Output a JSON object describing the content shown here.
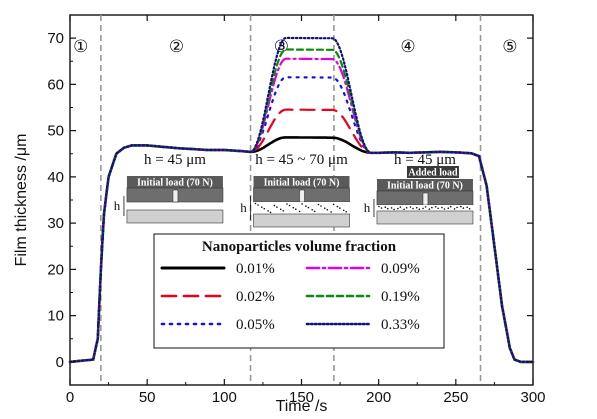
{
  "chart_data": {
    "type": "line",
    "xlabel": "Time /s",
    "ylabel": "Film thickness /μm",
    "xlim": [
      0,
      300
    ],
    "ylim": [
      -5,
      75
    ],
    "x_ticks": [
      0,
      50,
      100,
      150,
      200,
      250,
      300
    ],
    "x_tick_labels": [
      "0",
      "50",
      "100",
      "150",
      "200",
      "250",
      "300"
    ],
    "y_ticks": [
      0,
      10,
      20,
      30,
      40,
      50,
      60,
      70
    ],
    "y_tick_labels": [
      "0",
      "10",
      "20",
      "30",
      "40",
      "50",
      "60",
      "70"
    ],
    "grid": false,
    "stage_boundaries": [
      20,
      117,
      171,
      266
    ],
    "stages": [
      {
        "label": "①",
        "x": 7
      },
      {
        "label": "②",
        "x": 69
      },
      {
        "label": "③",
        "x": 137
      },
      {
        "label": "④",
        "x": 219
      },
      {
        "label": "⑤",
        "x": 285
      }
    ],
    "annotations": [
      {
        "text": "h = 45 μm",
        "x": 68,
        "y": 44
      },
      {
        "text": "h = 45 ~ 70 μm",
        "x": 150,
        "y": 44
      },
      {
        "text": "h = 45 μm",
        "x": 230,
        "y": 44
      }
    ],
    "inset_labels": {
      "initial_load": "Initial load (70 N)",
      "added_load": "Added load",
      "h": "h"
    },
    "legend": {
      "title": "Nanoparticles volume fraction",
      "placement": "center-bottom"
    },
    "base_profile": {
      "x": [
        0,
        15,
        18,
        20,
        22,
        25,
        30,
        35,
        40,
        50,
        60,
        70,
        80,
        90,
        100,
        110,
        117,
        200,
        210,
        220,
        230,
        240,
        250,
        260,
        265,
        270,
        275,
        280,
        285,
        288,
        292,
        296,
        300
      ],
      "y": [
        0,
        0.5,
        5,
        20,
        32,
        40,
        45,
        46.3,
        46.8,
        46.8,
        46.5,
        46.2,
        46,
        45.8,
        45.8,
        45.6,
        45.4,
        45.2,
        45.3,
        45.2,
        45.3,
        45.4,
        45.3,
        45.1,
        44.5,
        38,
        25,
        12,
        3,
        0.5,
        0,
        0,
        0
      ]
    },
    "series": [
      {
        "name": "0.01%",
        "peak": 48.5,
        "color": "#000000",
        "style": "solid"
      },
      {
        "name": "0.02%",
        "peak": 54.5,
        "color": "#e8001c",
        "style": "dash"
      },
      {
        "name": "0.05%",
        "peak": 61.5,
        "color": "#1010ee",
        "style": "dot"
      },
      {
        "name": "0.09%",
        "peak": 65.5,
        "color": "#e000e0",
        "style": "dashdot"
      },
      {
        "name": "0.19%",
        "peak": 67.5,
        "color": "#0a8a0a",
        "style": "shortdash"
      },
      {
        "name": "0.33%",
        "peak": 70,
        "color": "#101080",
        "style": "densedot"
      }
    ]
  }
}
